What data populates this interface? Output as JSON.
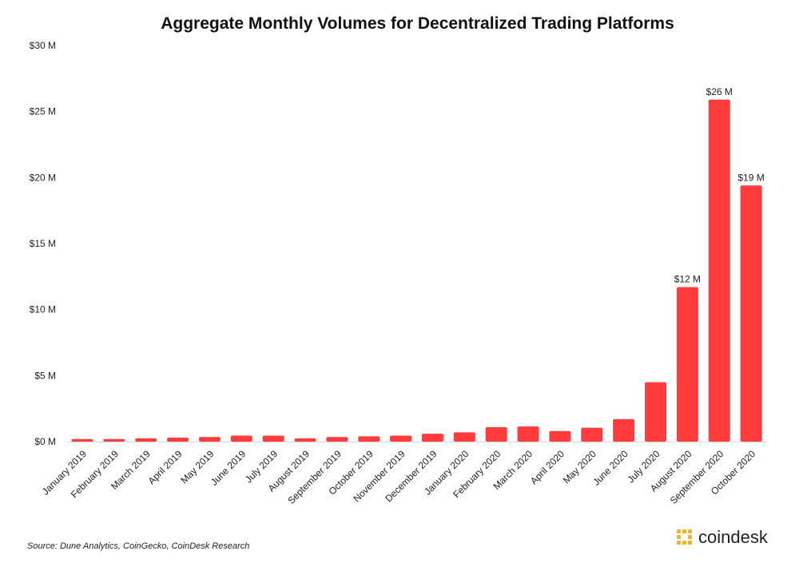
{
  "chart_data": {
    "type": "bar",
    "title": "Aggregate Monthly Volumes for Decentralized Trading Platforms",
    "xlabel": "",
    "ylabel": "",
    "ylim": [
      0,
      30
    ],
    "yticks": [
      0,
      5,
      10,
      15,
      20,
      25,
      30
    ],
    "ytick_labels": [
      "$0 M",
      "$5 M",
      "$10 M",
      "$15 M",
      "$20 M",
      "$25 M",
      "$30 M"
    ],
    "grid": false,
    "bar_color": "#ff3b3b",
    "categories": [
      "January 2019",
      "February 2019",
      "March 2019",
      "April 2019",
      "May 2019",
      "June 2019",
      "July 2019",
      "August 2019",
      "September 2019",
      "October 2019",
      "November 2019",
      "December 2019",
      "January 2020",
      "February 2020",
      "March 2020",
      "April 2020",
      "May 2020",
      "June 2020",
      "July 2020",
      "August 2020",
      "September 2020",
      "October 2020"
    ],
    "values": [
      0.2,
      0.2,
      0.25,
      0.3,
      0.35,
      0.45,
      0.45,
      0.25,
      0.35,
      0.4,
      0.45,
      0.6,
      0.7,
      1.1,
      1.15,
      0.8,
      1.05,
      1.7,
      4.5,
      11.7,
      25.9,
      19.4
    ],
    "data_labels": [
      {
        "index": 19,
        "text": "$12 M"
      },
      {
        "index": 20,
        "text": "$26 M"
      },
      {
        "index": 21,
        "text": "$19 M"
      }
    ]
  },
  "footer": {
    "source": "Source: Dune Analytics, CoinGecko, CoinDesk Research",
    "brand": "coindesk",
    "brand_color": "#f5b21b"
  }
}
